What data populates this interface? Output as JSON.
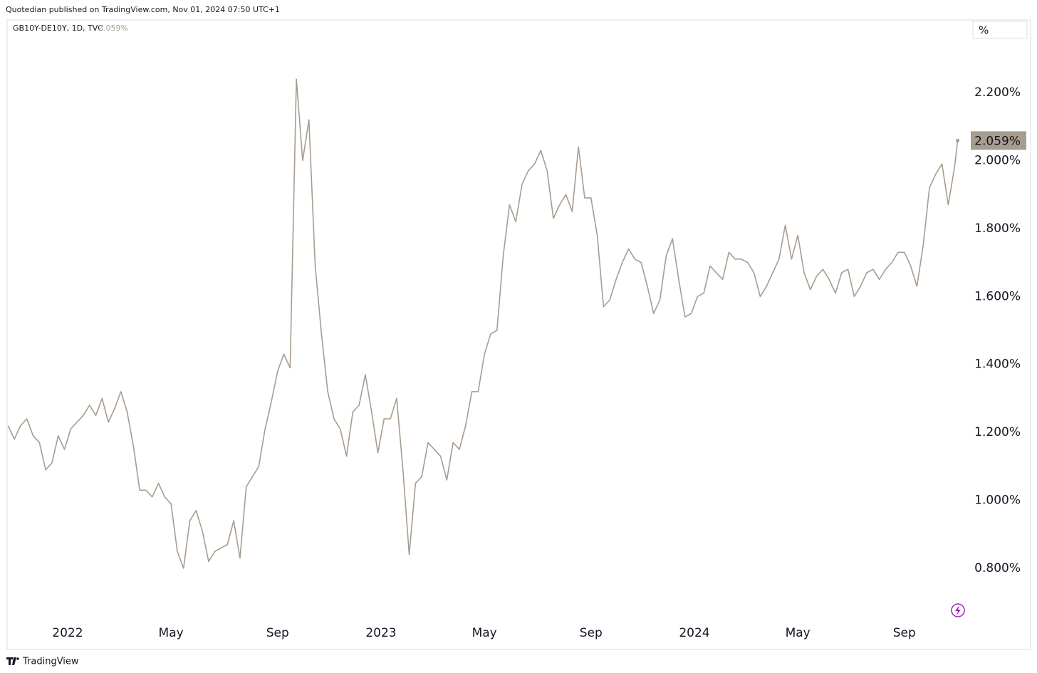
{
  "header": {
    "publisher": "Quotedian published on TradingView.com, Nov 01, 2024 07:50 UTC+1",
    "unit_button": "%",
    "footer": "TradingView"
  },
  "chart_data": {
    "type": "line",
    "x": [
      2021.81,
      2021.83,
      2021.85,
      2021.87,
      2021.89,
      2021.91,
      2021.93,
      2021.95,
      2021.97,
      2021.99,
      2022.01,
      2022.03,
      2022.05,
      2022.07,
      2022.09,
      2022.11,
      2022.13,
      2022.15,
      2022.17,
      2022.19,
      2022.21,
      2022.23,
      2022.25,
      2022.27,
      2022.29,
      2022.31,
      2022.33,
      2022.35,
      2022.37,
      2022.39,
      2022.41,
      2022.43,
      2022.45,
      2022.47,
      2022.49,
      2022.51,
      2022.53,
      2022.55,
      2022.57,
      2022.59,
      2022.61,
      2022.63,
      2022.65,
      2022.67,
      2022.69,
      2022.71,
      2022.73,
      2022.75,
      2022.77,
      2022.79,
      2022.81,
      2022.83,
      2022.85,
      2022.87,
      2022.89,
      2022.91,
      2022.93,
      2022.95,
      2022.97,
      2022.99,
      2023.01,
      2023.03,
      2023.05,
      2023.07,
      2023.09,
      2023.11,
      2023.13,
      2023.15,
      2023.17,
      2023.19,
      2023.21,
      2023.23,
      2023.25,
      2023.27,
      2023.29,
      2023.31,
      2023.33,
      2023.35,
      2023.37,
      2023.39,
      2023.41,
      2023.43,
      2023.45,
      2023.47,
      2023.49,
      2023.51,
      2023.53,
      2023.55,
      2023.57,
      2023.59,
      2023.61,
      2023.63,
      2023.65,
      2023.67,
      2023.69,
      2023.71,
      2023.73,
      2023.75,
      2023.77,
      2023.79,
      2023.81,
      2023.83,
      2023.85,
      2023.87,
      2023.89,
      2023.91,
      2023.93,
      2023.95,
      2023.97,
      2023.99,
      2024.01,
      2024.03,
      2024.05,
      2024.07,
      2024.09,
      2024.11,
      2024.13,
      2024.15,
      2024.17,
      2024.19,
      2024.21,
      2024.23,
      2024.25,
      2024.27,
      2024.29,
      2024.31,
      2024.33,
      2024.35,
      2024.37,
      2024.39,
      2024.41,
      2024.43,
      2024.45,
      2024.47,
      2024.49,
      2024.51,
      2024.53,
      2024.55,
      2024.57,
      2024.59,
      2024.61,
      2024.63,
      2024.65,
      2024.67,
      2024.69,
      2024.71,
      2024.73,
      2024.75,
      2024.77,
      2024.79,
      2024.81,
      2024.83,
      2024.84
    ],
    "series": [
      {
        "name": "GB10Y-DE10Y, 1D, TVC",
        "color": "#a89c8f",
        "values": [
          1.22,
          1.18,
          1.22,
          1.24,
          1.19,
          1.17,
          1.09,
          1.11,
          1.19,
          1.15,
          1.21,
          1.23,
          1.25,
          1.28,
          1.25,
          1.3,
          1.23,
          1.27,
          1.32,
          1.26,
          1.16,
          1.03,
          1.03,
          1.01,
          1.05,
          1.01,
          0.99,
          0.85,
          0.8,
          0.94,
          0.97,
          0.91,
          0.82,
          0.85,
          0.86,
          0.87,
          0.94,
          0.83,
          1.04,
          1.07,
          1.1,
          1.21,
          1.29,
          1.38,
          1.43,
          1.39,
          2.24,
          2.0,
          2.12,
          1.69,
          1.49,
          1.32,
          1.24,
          1.21,
          1.13,
          1.26,
          1.28,
          1.37,
          1.26,
          1.14,
          1.24,
          1.24,
          1.3,
          1.09,
          0.84,
          1.05,
          1.07,
          1.17,
          1.15,
          1.13,
          1.06,
          1.17,
          1.15,
          1.22,
          1.32,
          1.32,
          1.43,
          1.49,
          1.5,
          1.72,
          1.87,
          1.82,
          1.93,
          1.97,
          1.99,
          2.03,
          1.97,
          1.83,
          1.87,
          1.9,
          1.85,
          2.04,
          1.89,
          1.89,
          1.78,
          1.57,
          1.59,
          1.65,
          1.7,
          1.74,
          1.71,
          1.7,
          1.63,
          1.55,
          1.59,
          1.72,
          1.77,
          1.65,
          1.54,
          1.55,
          1.6,
          1.61,
          1.69,
          1.67,
          1.65,
          1.73,
          1.71,
          1.71,
          1.7,
          1.67,
          1.6,
          1.63,
          1.67,
          1.71,
          1.81,
          1.71,
          1.78,
          1.67,
          1.62,
          1.66,
          1.68,
          1.65,
          1.61,
          1.67,
          1.68,
          1.6,
          1.63,
          1.67,
          1.68,
          1.65,
          1.68,
          1.7,
          1.73,
          1.73,
          1.69,
          1.63,
          1.75,
          1.92,
          1.96,
          1.99,
          1.87,
          1.98,
          2.059
        ],
        "value_labels": {
          "152": "2.059%"
        }
      }
    ],
    "xlim": [
      2021.807,
      2024.875
    ],
    "xticks": [
      {
        "value": 2022,
        "label": "2022"
      },
      {
        "value": 2022.33,
        "label": "May"
      },
      {
        "value": 2022.67,
        "label": "Sep"
      },
      {
        "value": 2023,
        "label": "2023"
      },
      {
        "value": 2023.33,
        "label": "May"
      },
      {
        "value": 2023.67,
        "label": "Sep"
      },
      {
        "value": 2024,
        "label": "2024"
      },
      {
        "value": 2024.33,
        "label": "May"
      },
      {
        "value": 2024.67,
        "label": "Sep"
      }
    ],
    "ylim": [
      0.561,
      2.414
    ],
    "yticks": [
      {
        "value": 0.8,
        "label": "0.800%"
      },
      {
        "value": 1.0,
        "label": "1.000%"
      },
      {
        "value": 1.2,
        "label": "1.200%"
      },
      {
        "value": 1.4,
        "label": "1.400%"
      },
      {
        "value": 1.6,
        "label": "1.600%"
      },
      {
        "value": 1.8,
        "label": "1.800%"
      },
      {
        "value": 2.0,
        "label": "2.000%"
      },
      {
        "value": 2.2,
        "label": "2.200%"
      }
    ],
    "grid": false
  }
}
